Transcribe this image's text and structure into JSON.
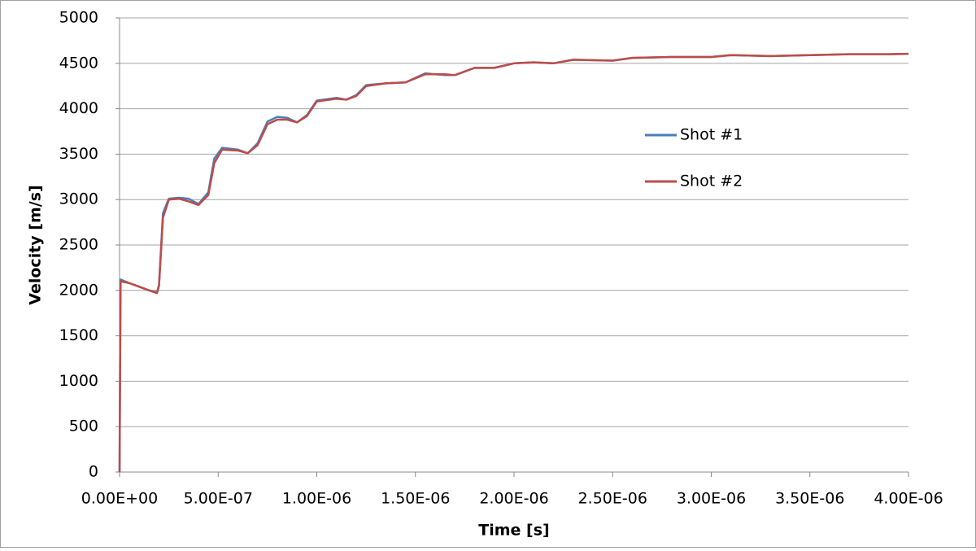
{
  "chart_data": {
    "type": "line",
    "x_label": "Time [s]",
    "y_label": "Velocity [m/s]",
    "x": [
      0,
      5e-09,
      5e-08,
      1e-07,
      1.5e-07,
      1.9e-07,
      2e-07,
      2.2e-07,
      2.5e-07,
      3e-07,
      3.5e-07,
      4e-07,
      4.5e-07,
      4.8e-07,
      5.2e-07,
      6e-07,
      6.5e-07,
      7e-07,
      7.5e-07,
      8e-07,
      8.5e-07,
      9e-07,
      9.5e-07,
      1e-06,
      1.1e-06,
      1.15e-06,
      1.2e-06,
      1.25e-06,
      1.35e-06,
      1.45e-06,
      1.55e-06,
      1.65e-06,
      1.7e-06,
      1.8e-06,
      1.9e-06,
      2e-06,
      2.1e-06,
      2.2e-06,
      2.3e-06,
      2.5e-06,
      2.6e-06,
      2.8e-06,
      3e-06,
      3.1e-06,
      3.3e-06,
      3.5e-06,
      3.7e-06,
      3.9e-06,
      4e-06
    ],
    "series": [
      {
        "name": "Shot #1",
        "color": "#4a7ebb",
        "values": [
          0,
          2120,
          2080,
          2040,
          2000,
          1980,
          2060,
          2850,
          3010,
          3020,
          3010,
          2950,
          3080,
          3450,
          3570,
          3550,
          3510,
          3620,
          3860,
          3910,
          3900,
          3850,
          3930,
          4090,
          4120,
          4100,
          4150,
          4260,
          4280,
          4290,
          4390,
          4370,
          4370,
          4450,
          4450,
          4500,
          4510,
          4500,
          4540,
          4530,
          4560,
          4570,
          4570,
          4590,
          4580,
          4590,
          4600,
          4600,
          4605
        ]
      },
      {
        "name": "Shot #2",
        "color": "#be4b48",
        "values": [
          0,
          2100,
          2080,
          2040,
          2000,
          1970,
          2050,
          2800,
          3000,
          3010,
          2980,
          2940,
          3050,
          3400,
          3550,
          3540,
          3510,
          3600,
          3830,
          3880,
          3880,
          3850,
          3920,
          4080,
          4110,
          4100,
          4140,
          4250,
          4280,
          4290,
          4380,
          4380,
          4370,
          4450,
          4450,
          4500,
          4510,
          4500,
          4540,
          4530,
          4560,
          4570,
          4570,
          4590,
          4580,
          4590,
          4600,
          4600,
          4605
        ]
      }
    ],
    "xlim": [
      0,
      4e-06
    ],
    "xticks": [
      {
        "value": 0,
        "label": "0.00E+00"
      },
      {
        "value": 5e-07,
        "label": "5.00E-07"
      },
      {
        "value": 1e-06,
        "label": "1.00E-06"
      },
      {
        "value": 1.5e-06,
        "label": "1.50E-06"
      },
      {
        "value": 2e-06,
        "label": "2.00E-06"
      },
      {
        "value": 2.5e-06,
        "label": "2.50E-06"
      },
      {
        "value": 3e-06,
        "label": "3.00E-06"
      },
      {
        "value": 3.5e-06,
        "label": "3.50E-06"
      },
      {
        "value": 4e-06,
        "label": "4.00E-06"
      }
    ],
    "ylim": [
      0,
      5000
    ],
    "yticks": [
      0,
      500,
      1000,
      1500,
      2000,
      2500,
      3000,
      3500,
      4000,
      4500,
      5000
    ],
    "grid": true,
    "legend": "right"
  }
}
